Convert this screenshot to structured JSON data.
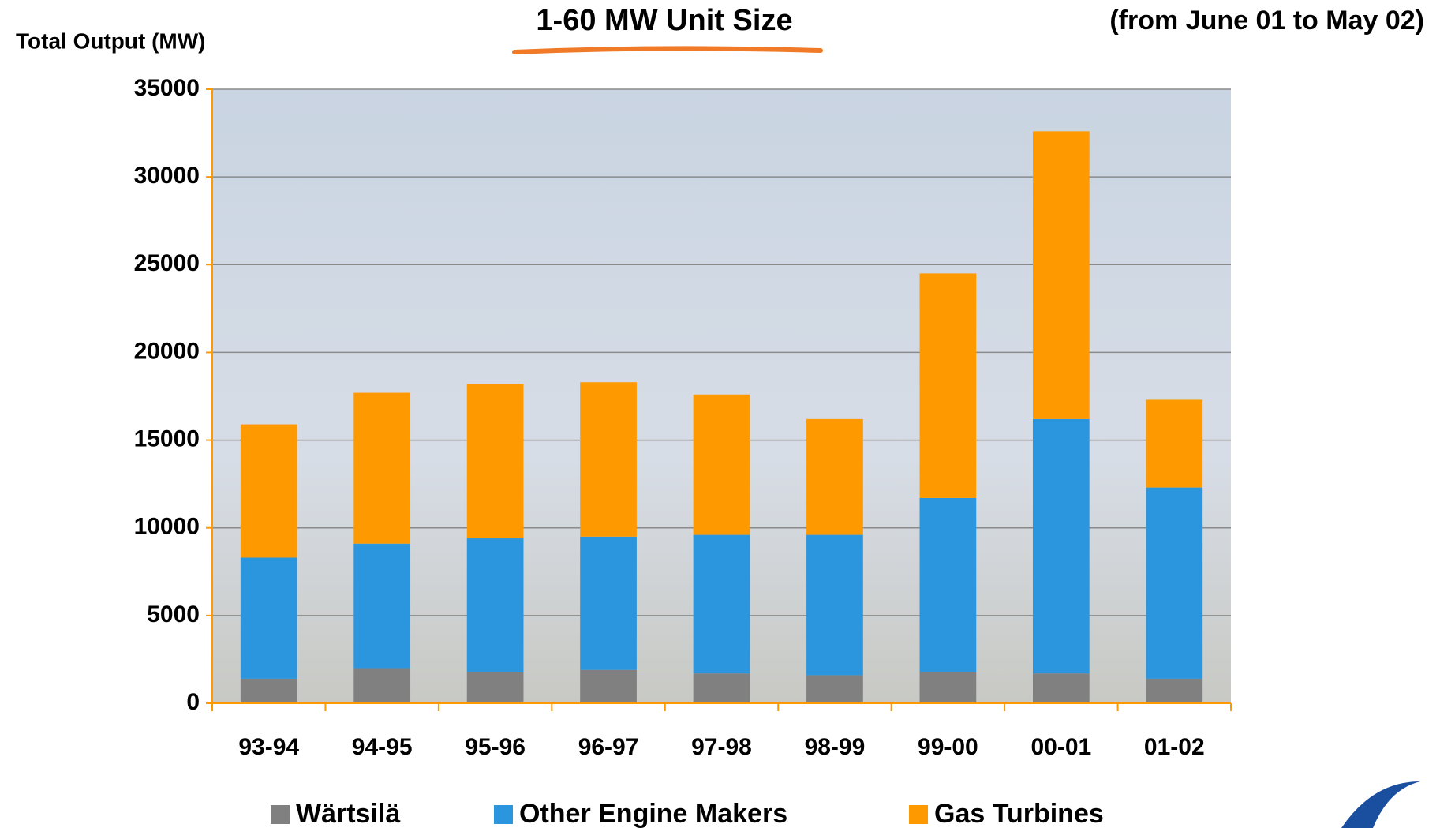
{
  "chart_data": {
    "type": "stacked_bar",
    "title": "1-60 MW Unit Size",
    "subtitle": "(from June 01 to May 02)",
    "y_label": "Total Output (MW)",
    "categories": [
      "93-94",
      "94-95",
      "95-96",
      "96-97",
      "97-98",
      "98-99",
      "99-00",
      "00-01",
      "01-02"
    ],
    "series": [
      {
        "name": "Wärtsilä",
        "color": "#808080",
        "values": [
          1400,
          2000,
          1800,
          1900,
          1700,
          1600,
          1800,
          1700,
          1400
        ]
      },
      {
        "name": "Other Engine Makers",
        "color": "#2b95dd",
        "values": [
          6900,
          7100,
          7600,
          7600,
          7900,
          8000,
          9900,
          14500,
          10900
        ]
      },
      {
        "name": "Gas Turbines",
        "color": "#ff9900",
        "values": [
          7600,
          8600,
          8800,
          8800,
          8000,
          6600,
          12800,
          16400,
          5000
        ]
      }
    ],
    "ylim": [
      0,
      35000
    ],
    "yticks": [
      0,
      5000,
      10000,
      15000,
      20000,
      25000,
      30000,
      35000
    ],
    "grid": true
  }
}
